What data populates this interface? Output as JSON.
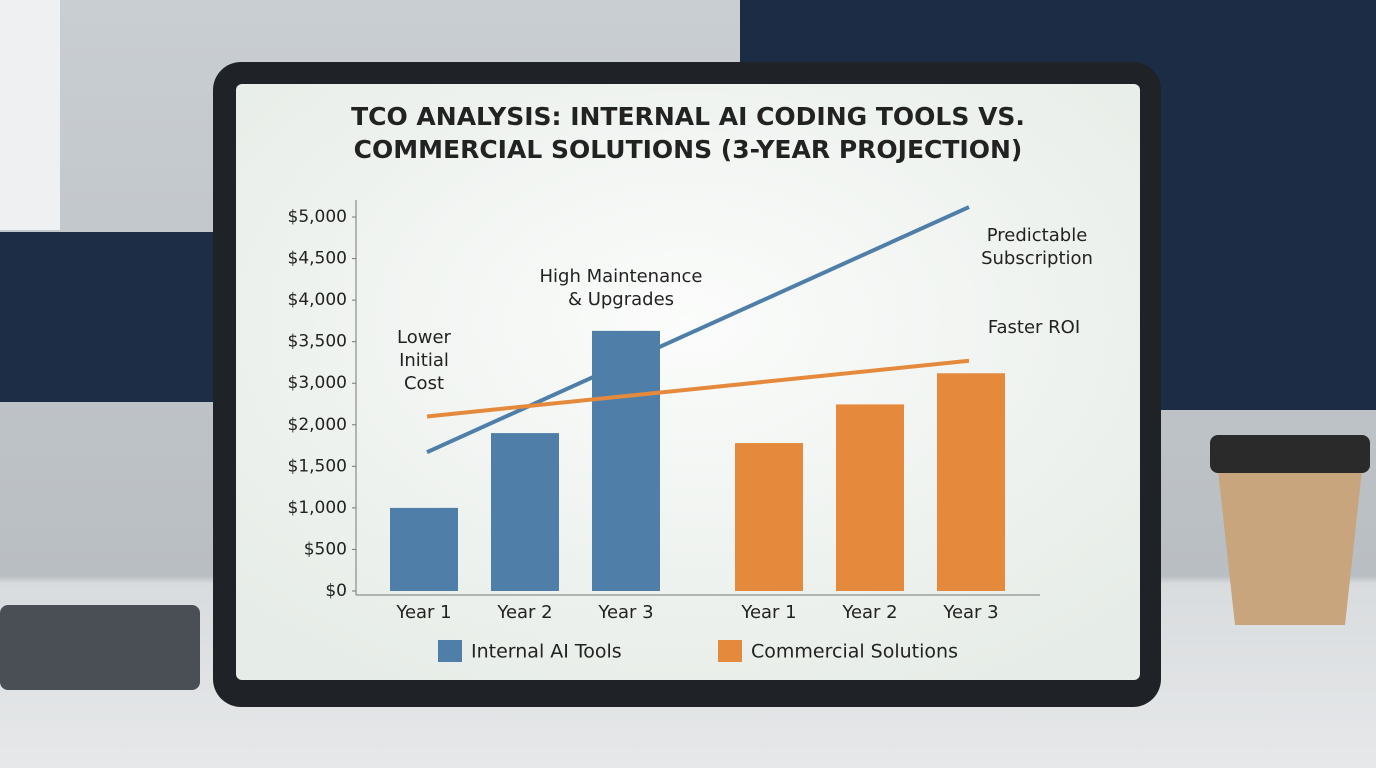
{
  "chart_data": {
    "type": "bar",
    "title": [
      "TCO ANALYSIS: INTERNAL AI CODING TOOLS VS.",
      "COMMERCIAL SOLUTIONS (3-YEAR PROJECTION)"
    ],
    "categories": [
      "Year 1",
      "Year 2",
      "Year 3",
      "Year 1",
      "Year 2",
      "Year 3"
    ],
    "series": [
      {
        "name": "Internal AI Tools",
        "color": "#4f7fa8",
        "values": [
          1000,
          1900,
          3630,
          null,
          null,
          null
        ]
      },
      {
        "name": "Commercial Solutions",
        "color": "#e58a3c",
        "values": [
          null,
          null,
          null,
          1780,
          2490,
          3120
        ]
      }
    ],
    "trend_lines": [
      {
        "color": "#4f7fa8",
        "values": [
          1670,
          5120
        ]
      },
      {
        "color": "#e58a3c",
        "values": [
          2200,
          3270
        ]
      }
    ],
    "annotations": [
      [
        "Lower",
        "Initial",
        "Cost"
      ],
      [
        "High Maintenance",
        "& Upgrades"
      ],
      [
        "Predictable",
        "Subscription"
      ],
      [
        "Faster ROI"
      ]
    ],
    "ylim": [
      0,
      5000
    ],
    "yticks": [
      {
        "value": 0,
        "label": "$0"
      },
      {
        "value": 500,
        "label": "$500"
      },
      {
        "value": 1000,
        "label": "$1,000"
      },
      {
        "value": 1500,
        "label": "$1,500"
      },
      {
        "value": 2000,
        "label": "$2,000"
      },
      {
        "value": 3000,
        "label": "$3,000"
      },
      {
        "value": 3500,
        "label": "$3,500"
      },
      {
        "value": 4000,
        "label": "$4,000"
      },
      {
        "value": 4500,
        "label": "$4,500"
      },
      {
        "value": 5000,
        "label": "$5,000"
      }
    ],
    "grid": false
  }
}
